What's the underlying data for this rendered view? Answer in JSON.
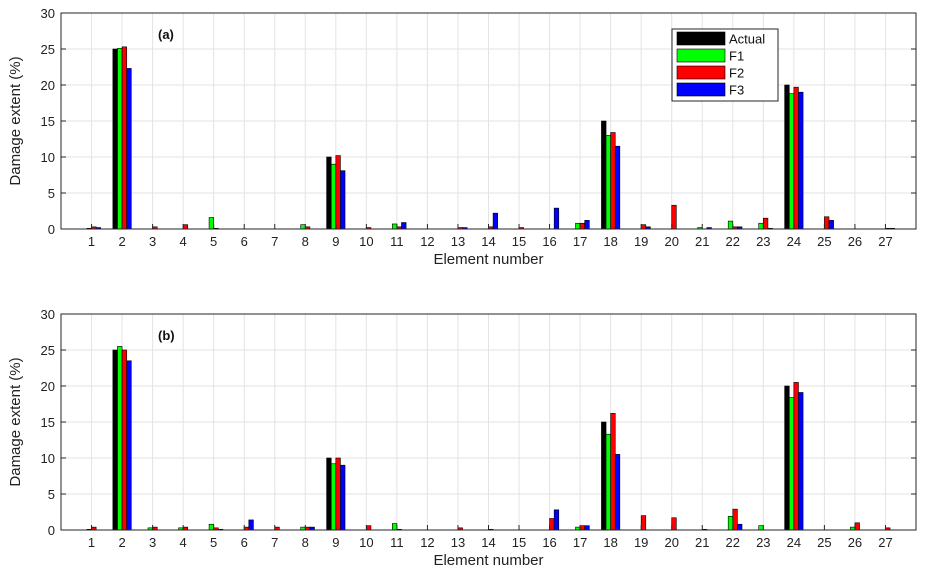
{
  "chart_data": [
    {
      "type": "bar",
      "label": "(a)",
      "xlabel": "Element number",
      "ylabel": "Damage extent (%)",
      "ylim": [
        0,
        30
      ],
      "yticks": [
        0,
        5,
        10,
        15,
        20,
        25,
        30
      ],
      "grid": true,
      "legend_position": "top-right",
      "categories": [
        "1",
        "2",
        "3",
        "4",
        "5",
        "6",
        "7",
        "8",
        "9",
        "10",
        "11",
        "12",
        "13",
        "14",
        "15",
        "16",
        "17",
        "18",
        "19",
        "20",
        "21",
        "22",
        "23",
        "24",
        "25",
        "26",
        "27"
      ],
      "series": [
        {
          "name": "Actual",
          "color": "#000000",
          "values": [
            0,
            25,
            0,
            0,
            0,
            0,
            0,
            0,
            10,
            0,
            0,
            0,
            0,
            0,
            0,
            0,
            0,
            15,
            0,
            0,
            0,
            0,
            0,
            20,
            0,
            0,
            0
          ]
        },
        {
          "name": "F1",
          "color": "#00ff00",
          "values": [
            0.1,
            25.1,
            0,
            0,
            1.6,
            0,
            0,
            0.6,
            9,
            0,
            0.7,
            0,
            0,
            0,
            0,
            0,
            0.8,
            13,
            0,
            0,
            0.2,
            1.1,
            0.8,
            18.8,
            0,
            0,
            0
          ]
        },
        {
          "name": "F2",
          "color": "#ff0000",
          "values": [
            0.3,
            25.3,
            0.3,
            0.6,
            0.1,
            0,
            0,
            0.3,
            10.2,
            0.2,
            0.3,
            0,
            0.2,
            0.3,
            0.2,
            0,
            0.8,
            13.4,
            0.6,
            3.3,
            0,
            0.3,
            1.5,
            19.7,
            1.7,
            0,
            0.1
          ]
        },
        {
          "name": "F3",
          "color": "#0000ff",
          "values": [
            0.2,
            22.3,
            0,
            0,
            0,
            0,
            0,
            0,
            8.1,
            0,
            0.9,
            0,
            0.2,
            2.2,
            0,
            2.9,
            1.2,
            11.5,
            0.3,
            0,
            0.2,
            0.3,
            0.1,
            19,
            1.2,
            0,
            0.1
          ]
        }
      ]
    },
    {
      "type": "bar",
      "label": "(b)",
      "xlabel": "Element number",
      "ylabel": "Damage extent (%)",
      "ylim": [
        0,
        30
      ],
      "yticks": [
        0,
        5,
        10,
        15,
        20,
        25,
        30
      ],
      "grid": true,
      "categories": [
        "1",
        "2",
        "3",
        "4",
        "5",
        "6",
        "7",
        "8",
        "9",
        "10",
        "11",
        "12",
        "13",
        "14",
        "15",
        "16",
        "17",
        "18",
        "19",
        "20",
        "21",
        "22",
        "23",
        "24",
        "25",
        "26",
        "27"
      ],
      "series": [
        {
          "name": "Actual",
          "color": "#000000",
          "values": [
            0,
            25,
            0,
            0,
            0,
            0,
            0,
            0,
            10,
            0,
            0,
            0,
            0,
            0,
            0,
            0,
            0,
            15,
            0,
            0,
            0,
            0,
            0,
            20,
            0,
            0,
            0
          ]
        },
        {
          "name": "F1",
          "color": "#00ff00",
          "values": [
            0.1,
            25.5,
            0.3,
            0.3,
            0.8,
            0,
            0,
            0.4,
            9.2,
            0,
            0.9,
            0,
            0,
            0,
            0,
            0,
            0.4,
            13.3,
            0,
            0,
            0,
            1.9,
            0.6,
            18.4,
            0,
            0.4,
            0
          ]
        },
        {
          "name": "F2",
          "color": "#ff0000",
          "values": [
            0.4,
            25,
            0.4,
            0.4,
            0.3,
            0.4,
            0.4,
            0.4,
            10,
            0.6,
            0.1,
            0,
            0.3,
            0.1,
            0,
            1.6,
            0.6,
            16.2,
            2,
            1.7,
            0.1,
            2.9,
            0,
            20.5,
            0,
            1,
            0.3
          ]
        },
        {
          "name": "F3",
          "color": "#0000ff",
          "values": [
            0,
            23.5,
            0,
            0,
            0.1,
            1.4,
            0,
            0.4,
            9,
            0,
            0,
            0,
            0,
            0,
            0,
            2.8,
            0.6,
            10.5,
            0,
            0,
            0,
            0.8,
            0,
            19.1,
            0,
            0,
            0
          ]
        }
      ]
    }
  ]
}
